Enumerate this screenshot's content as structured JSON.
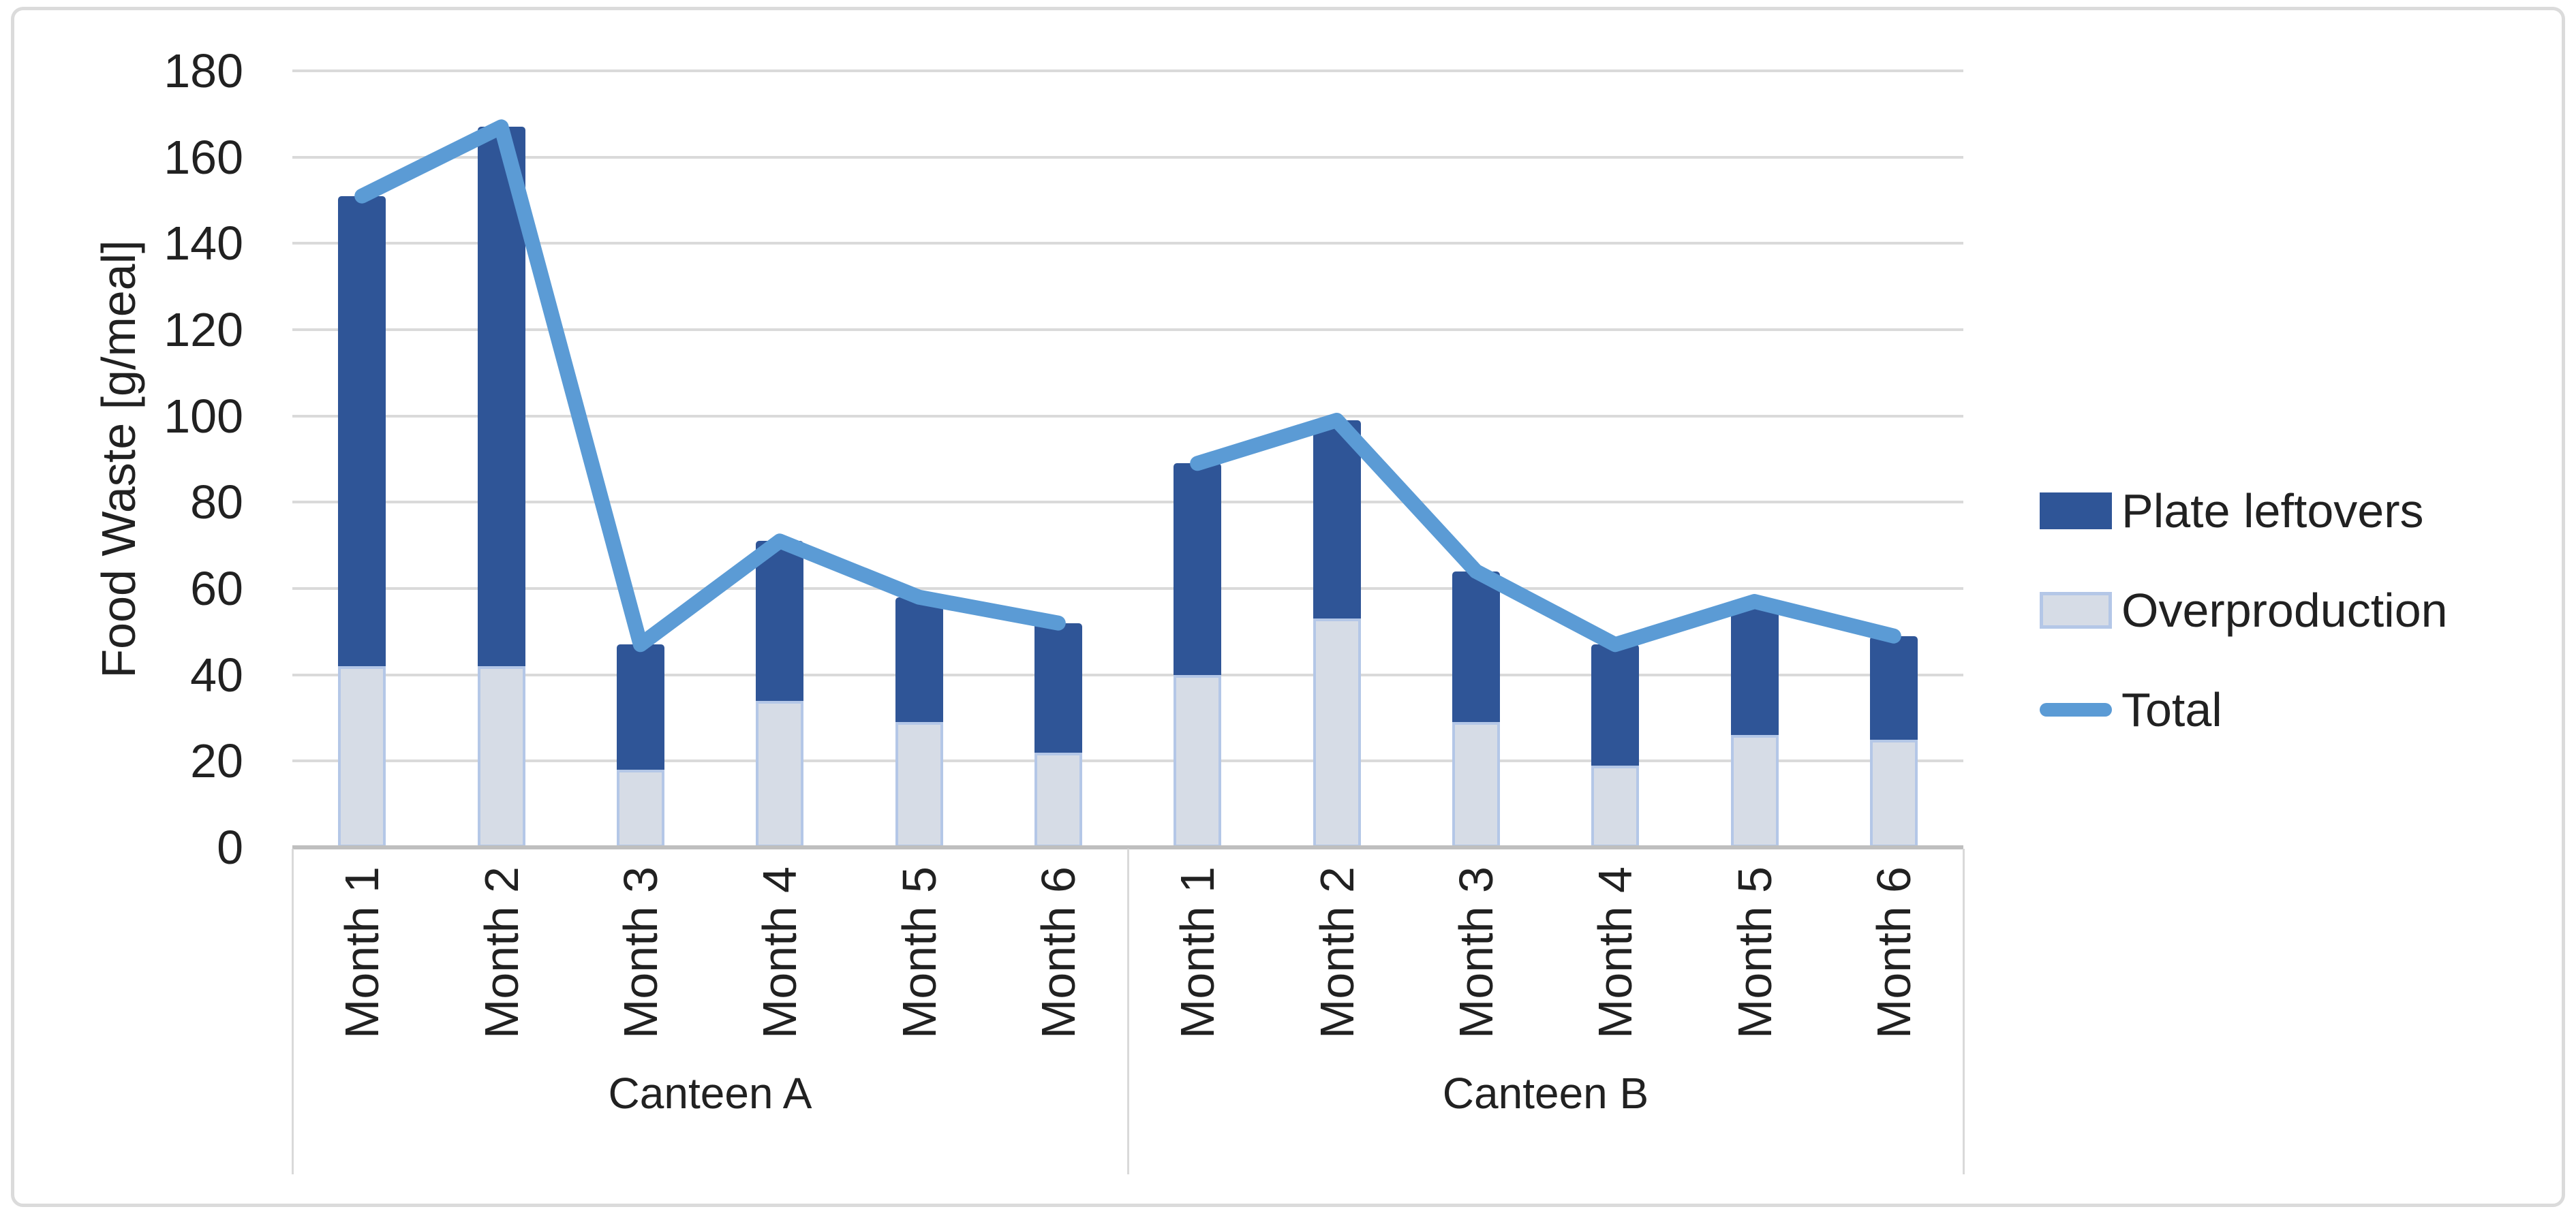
{
  "chart_data": {
    "type": "bar",
    "subtype": "stacked-column-with-total-line",
    "title": "",
    "xlabel": "",
    "ylabel": "Food Waste [g/meal]",
    "ylim": [
      0,
      180
    ],
    "ytick_step": 20,
    "yticks": [
      0,
      20,
      40,
      60,
      80,
      100,
      120,
      140,
      160,
      180
    ],
    "grid": true,
    "legend_position": "right",
    "groups": [
      {
        "label": "Canteen A",
        "categories": [
          "Month 1",
          "Month 2",
          "Month 3",
          "Month 4",
          "Month 5",
          "Month 6"
        ]
      },
      {
        "label": "Canteen B",
        "categories": [
          "Month 1",
          "Month 2",
          "Month 3",
          "Month 4",
          "Month 5",
          "Month 6"
        ]
      }
    ],
    "series": [
      {
        "name": "Plate leftovers",
        "type": "bar",
        "stack_position": "top",
        "color": "#2F5597",
        "values": [
          [
            109,
            125,
            29,
            37,
            29,
            30
          ],
          [
            49,
            46,
            35,
            28,
            31,
            24
          ]
        ]
      },
      {
        "name": "Overproduction",
        "type": "bar",
        "stack_position": "bottom",
        "color": "#D6DCE6",
        "border_color": "#B4C7E7",
        "values": [
          [
            42,
            42,
            18,
            34,
            29,
            22
          ],
          [
            40,
            53,
            29,
            19,
            26,
            25
          ]
        ]
      },
      {
        "name": "Total",
        "type": "line",
        "color": "#5B9BD5",
        "values": [
          [
            151,
            167,
            47,
            71,
            58,
            52
          ],
          [
            89,
            99,
            64,
            47,
            57,
            49
          ]
        ]
      }
    ]
  },
  "legend": {
    "items": [
      {
        "label": "Plate leftovers",
        "swatch": "bar-dark"
      },
      {
        "label": "Overproduction",
        "swatch": "bar-light"
      },
      {
        "label": "Total",
        "swatch": "line"
      }
    ]
  },
  "colors": {
    "plate_leftovers": "#2F5597",
    "overproduction_fill": "#D6DCE6",
    "overproduction_border": "#B4C7E7",
    "total_line": "#5B9BD5",
    "gridline": "#DADADA",
    "axis_line": "#BFBFBF",
    "divider": "#D9D9D9",
    "chart_border": "#DBDBDB",
    "text": "#212121"
  }
}
